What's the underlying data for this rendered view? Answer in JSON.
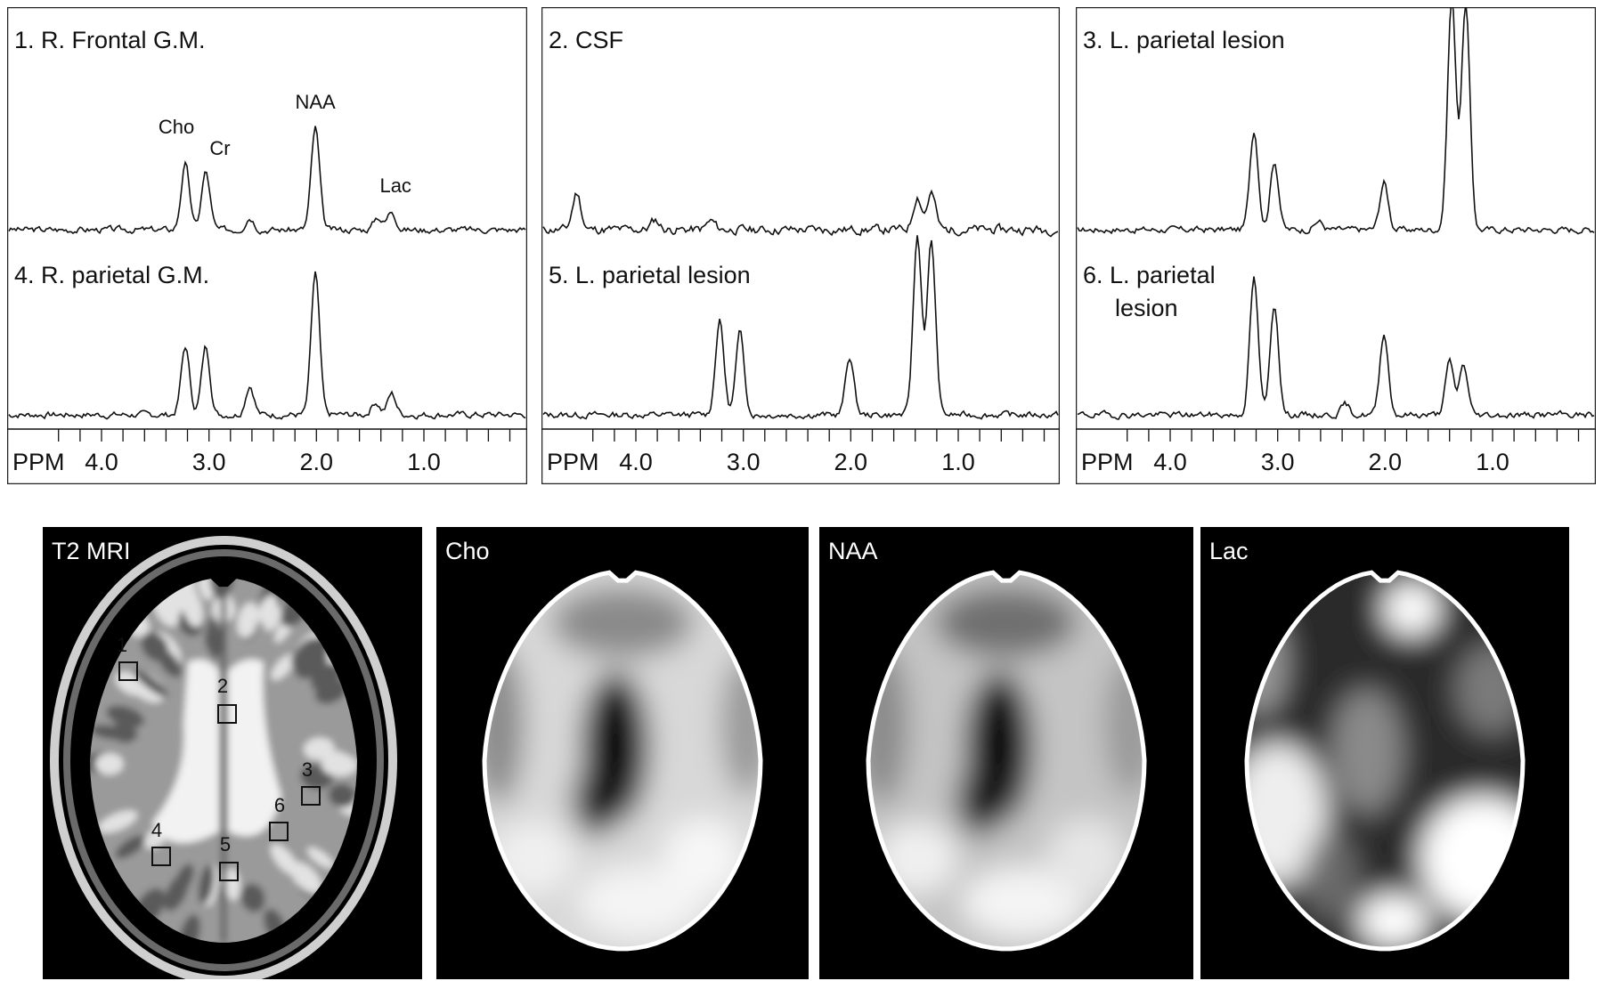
{
  "chart_data": [
    {
      "type": "line",
      "x_axis": {
        "label": "PPM",
        "ticks": [
          "4.0",
          "3.0",
          "2.0",
          "1.0"
        ],
        "reversed": true
      },
      "series": [
        {
          "name": "1. R. Frontal G.M.",
          "peak_labels": [
            {
              "text": "Cho",
              "ppm": 3.22
            },
            {
              "text": "Cr",
              "ppm": 3.03
            },
            {
              "text": "NAA",
              "ppm": 2.01
            },
            {
              "text": "Lac",
              "ppm": 1.33
            }
          ],
          "peaks": [
            {
              "ppm": 3.22,
              "h": 0.62
            },
            {
              "ppm": 3.03,
              "h": 0.55
            },
            {
              "ppm": 2.62,
              "h": 0.12
            },
            {
              "ppm": 2.01,
              "h": 0.97
            },
            {
              "ppm": 1.43,
              "h": 0.12
            },
            {
              "ppm": 1.3,
              "h": 0.18
            }
          ],
          "noise": 0.025,
          "seed": 3
        },
        {
          "name": "4. R. parietal G.M.",
          "peaks": [
            {
              "ppm": 3.22,
              "h": 0.65
            },
            {
              "ppm": 3.03,
              "h": 0.65
            },
            {
              "ppm": 2.62,
              "h": 0.28
            },
            {
              "ppm": 2.01,
              "h": 1.35
            },
            {
              "ppm": 1.45,
              "h": 0.12
            },
            {
              "ppm": 1.3,
              "h": 0.2
            }
          ],
          "noise": 0.025,
          "seed": 7
        }
      ]
    },
    {
      "type": "line",
      "x_axis": {
        "label": "PPM",
        "ticks": [
          "4.0",
          "3.0",
          "2.0",
          "1.0"
        ],
        "reversed": true
      },
      "series": [
        {
          "name": "2. CSF",
          "peaks": [
            {
              "ppm": 4.55,
              "h": 0.35
            },
            {
              "ppm": 3.82,
              "h": 0.09
            },
            {
              "ppm": 3.3,
              "h": 0.08
            },
            {
              "ppm": 1.38,
              "h": 0.32
            },
            {
              "ppm": 1.25,
              "h": 0.35
            }
          ],
          "noise": 0.035,
          "seed": 11
        },
        {
          "name": "5. L. parietal  lesion",
          "peaks": [
            {
              "ppm": 3.22,
              "h": 0.9
            },
            {
              "ppm": 3.03,
              "h": 0.78
            },
            {
              "ppm": 2.01,
              "h": 0.55
            },
            {
              "ppm": 1.38,
              "h": 1.7
            },
            {
              "ppm": 1.25,
              "h": 1.65
            }
          ],
          "noise": 0.025,
          "seed": 13
        }
      ]
    },
    {
      "type": "line",
      "x_axis": {
        "label": "PPM",
        "ticks": [
          "4.0",
          "3.0",
          "2.0",
          "1.0"
        ],
        "reversed": true
      },
      "series": [
        {
          "name": "3. L. parietal  lesion",
          "peaks": [
            {
              "ppm": 3.22,
              "h": 0.95
            },
            {
              "ppm": 3.03,
              "h": 0.65
            },
            {
              "ppm": 2.62,
              "h": 0.08
            },
            {
              "ppm": 2.01,
              "h": 0.45
            },
            {
              "ppm": 1.38,
              "h": 2.2
            },
            {
              "ppm": 1.25,
              "h": 2.15
            }
          ],
          "noise": 0.025,
          "seed": 17
        },
        {
          "name": "6. L. parietal\nlesion",
          "peaks": [
            {
              "ppm": 3.22,
              "h": 1.3
            },
            {
              "ppm": 3.03,
              "h": 1.05
            },
            {
              "ppm": 2.37,
              "h": 0.1
            },
            {
              "ppm": 2.01,
              "h": 0.78
            },
            {
              "ppm": 1.4,
              "h": 0.5
            },
            {
              "ppm": 1.27,
              "h": 0.48
            }
          ],
          "noise": 0.025,
          "seed": 19
        }
      ]
    }
  ],
  "images": [
    {
      "label": "T2 MRI",
      "kind": "t2",
      "rois": [
        "1",
        "2",
        "3",
        "4",
        "5",
        "6"
      ]
    },
    {
      "label": "Cho",
      "kind": "cho"
    },
    {
      "label": "NAA",
      "kind": "naa"
    },
    {
      "label": "Lac",
      "kind": "lac"
    }
  ]
}
